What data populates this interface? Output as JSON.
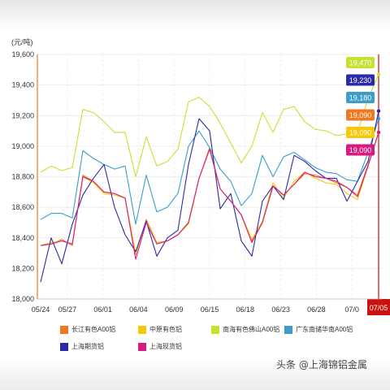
{
  "unit_label": "(元/吨)",
  "watermark": "头条 @上海锦铝金属",
  "chart_data": {
    "type": "line",
    "ylim": [
      18000,
      19600
    ],
    "yticks": [
      18000,
      18200,
      18400,
      18600,
      18800,
      19000,
      19200,
      19400,
      19600
    ],
    "ytick_labels": [
      "18,000",
      "18,200",
      "18,400",
      "18,600",
      "18,800",
      "19,000",
      "19,200",
      "19,400",
      "19,600"
    ],
    "x_tick_labels": [
      "05/24",
      "05/27",
      "06/01",
      "06/04",
      "06/09",
      "06/15",
      "06/18",
      "06/23",
      "06/28",
      "07/0",
      "07/05"
    ],
    "x_tick_index": [
      0,
      3,
      7,
      11,
      15,
      19,
      23,
      27,
      31,
      35,
      38
    ],
    "highlight_index": 38,
    "highlight_color": "#cc1111",
    "legend_placement": "bottom",
    "grid": true,
    "series": [
      {
        "name": "长江有色A00铝",
        "color": "#f07820",
        "tag_label": "19,090",
        "values": [
          18350,
          18360,
          18390,
          18350,
          18810,
          18770,
          18700,
          18690,
          18660,
          18290,
          18520,
          18370,
          18380,
          18420,
          18500,
          18790,
          18990,
          18720,
          18640,
          18550,
          18380,
          18500,
          18740,
          18680,
          18750,
          18820,
          18810,
          18790,
          18760,
          18730,
          18680,
          18880,
          19090
        ]
      },
      {
        "name": "中原有色铝",
        "color": "#f7c80a",
        "tag_label": "19,090",
        "values": [
          18350,
          18370,
          18380,
          18360,
          18800,
          18760,
          18690,
          18680,
          18660,
          18300,
          18510,
          18370,
          18380,
          18420,
          18490,
          18790,
          18980,
          18720,
          18640,
          18550,
          18390,
          18510,
          18760,
          18660,
          18770,
          18830,
          18790,
          18760,
          18750,
          18690,
          18650,
          18870,
          19090
        ]
      },
      {
        "name": "南海有色佛山A00铝",
        "color": "#c8e030",
        "tag_label": "19,470",
        "values": [
          18830,
          18870,
          18840,
          18860,
          19240,
          19220,
          19160,
          19090,
          19090,
          18800,
          19060,
          18870,
          18900,
          18980,
          19290,
          19320,
          19260,
          19150,
          19020,
          18890,
          19000,
          19220,
          19090,
          19240,
          19260,
          19160,
          19110,
          19100,
          19070,
          19080,
          19090,
          19310,
          19470
        ]
      },
      {
        "name": "广东南储华南A00铝",
        "color": "#3a9ec8",
        "tag_label": "19,180",
        "values": [
          18520,
          18560,
          18560,
          18530,
          18970,
          18920,
          18880,
          18850,
          18870,
          18490,
          18810,
          18570,
          18600,
          18690,
          19000,
          19100,
          18990,
          18850,
          18770,
          18610,
          18690,
          18940,
          18800,
          18930,
          18960,
          18910,
          18860,
          18830,
          18820,
          18780,
          18770,
          18960,
          19180
        ]
      },
      {
        "name": "上海期货铝",
        "color": "#2a2aa8",
        "tag_label": "19,230",
        "values": [
          18110,
          18400,
          18230,
          18490,
          18680,
          18790,
          18880,
          18600,
          18420,
          18310,
          18510,
          18280,
          18400,
          18450,
          18880,
          19180,
          19100,
          18590,
          18690,
          18380,
          18280,
          18640,
          18740,
          18650,
          18940,
          18900,
          18840,
          18790,
          18790,
          18640,
          18770,
          18900,
          19230
        ]
      },
      {
        "name": "上海现货铝",
        "color": "#d81b80",
        "tag_label": "19,090",
        "values": [
          18350,
          18360,
          18380,
          18360,
          18800,
          18770,
          18700,
          18690,
          18660,
          18260,
          18500,
          18360,
          18380,
          18420,
          18500,
          18790,
          18980,
          18720,
          18640,
          18550,
          18370,
          18500,
          18740,
          18680,
          18750,
          18830,
          18800,
          18790,
          18770,
          18730,
          18670,
          18870,
          19090
        ]
      }
    ]
  }
}
